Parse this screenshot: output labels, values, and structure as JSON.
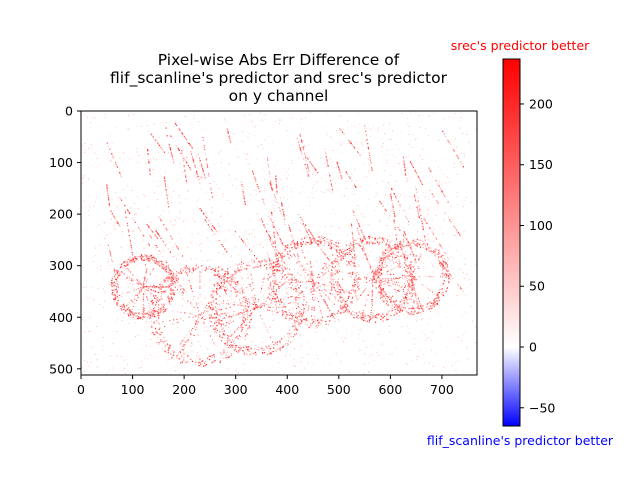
{
  "chart_data": {
    "type": "heatmap",
    "title_lines": [
      "Pixel-wise Abs Err Difference of",
      "flif_scanline's predictor and srec's predictor",
      "on y channel"
    ],
    "x_ticks": [
      0,
      100,
      200,
      300,
      400,
      500,
      600,
      700
    ],
    "y_ticks": [
      0,
      100,
      200,
      300,
      400,
      500
    ],
    "xlim": [
      0,
      768
    ],
    "ylim": [
      512,
      0
    ],
    "colorbar": {
      "ticks": [
        -50,
        0,
        50,
        100,
        150,
        200
      ],
      "range": [
        -65,
        237
      ],
      "colormap": "bwr",
      "top_label": "srec's predictor better",
      "bottom_label": "flif_scanline's predictor better",
      "top_color": "#ff0000",
      "bottom_color": "#0000ff"
    },
    "image_description": "sparse red edge pixels outlining cyclists and bicycle wheels on a white background"
  }
}
